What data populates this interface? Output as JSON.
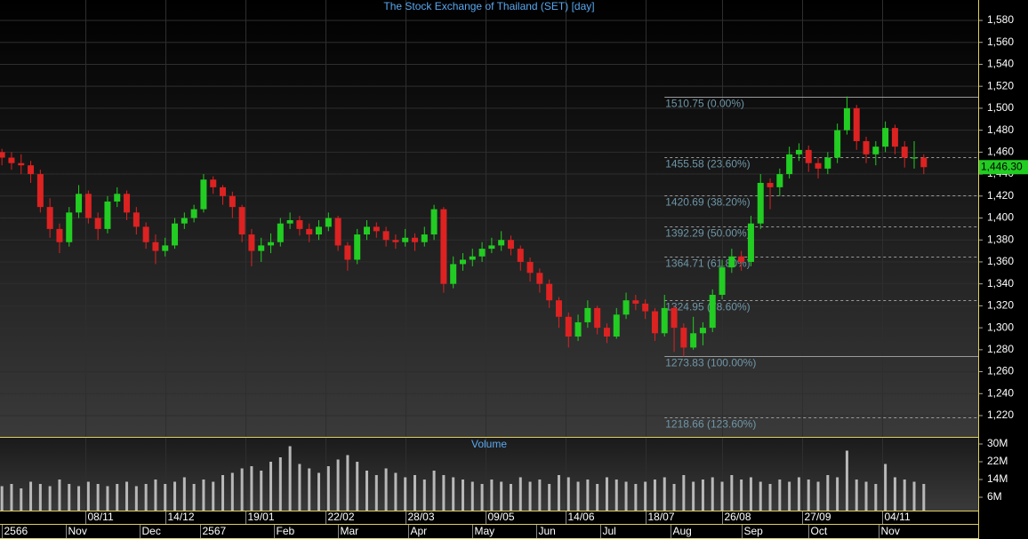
{
  "chart_data": [
    {
      "type": "candlestick",
      "title": "The Stock Exchange of Thailand (SET) [day]",
      "up_color": "#22cc22",
      "down_color": "#dd2222",
      "x": [
        0,
        3,
        6,
        9,
        12,
        15,
        18,
        21,
        24,
        27,
        30,
        33,
        36,
        39,
        42,
        45,
        48,
        51,
        54,
        57,
        60,
        63,
        66,
        69,
        72,
        75,
        78,
        81,
        84,
        87,
        90,
        93,
        96,
        99,
        102,
        105,
        108,
        111,
        114,
        117,
        120,
        123,
        126,
        129,
        132,
        135,
        138,
        141,
        144,
        147,
        150,
        153,
        156,
        159,
        162,
        165,
        168,
        171,
        174,
        177,
        180,
        183,
        186,
        189,
        192,
        195,
        198,
        201,
        204,
        207,
        210,
        213,
        216,
        219,
        222,
        225,
        228,
        231,
        234,
        237,
        240,
        243,
        246,
        249,
        252,
        255,
        258,
        261,
        264,
        267,
        270,
        273,
        276,
        279,
        282,
        285,
        288
      ],
      "ohlc": [
        [
          1460,
          1463,
          1448,
          1455
        ],
        [
          1455,
          1460,
          1444,
          1450
        ],
        [
          1450,
          1458,
          1440,
          1448
        ],
        [
          1448,
          1452,
          1432,
          1440
        ],
        [
          1440,
          1444,
          1405,
          1410
        ],
        [
          1410,
          1418,
          1382,
          1390
        ],
        [
          1390,
          1395,
          1368,
          1378
        ],
        [
          1378,
          1410,
          1374,
          1405
        ],
        [
          1405,
          1430,
          1400,
          1422
        ],
        [
          1422,
          1425,
          1395,
          1400
        ],
        [
          1400,
          1405,
          1380,
          1390
        ],
        [
          1390,
          1420,
          1386,
          1415
        ],
        [
          1415,
          1428,
          1410,
          1422
        ],
        [
          1422,
          1425,
          1398,
          1405
        ],
        [
          1405,
          1410,
          1385,
          1392
        ],
        [
          1392,
          1396,
          1372,
          1378
        ],
        [
          1378,
          1385,
          1358,
          1370
        ],
        [
          1370,
          1382,
          1365,
          1375
        ],
        [
          1375,
          1400,
          1372,
          1395
        ],
        [
          1395,
          1405,
          1390,
          1400
        ],
        [
          1400,
          1412,
          1396,
          1408
        ],
        [
          1408,
          1440,
          1405,
          1435
        ],
        [
          1435,
          1438,
          1422,
          1428
        ],
        [
          1428,
          1430,
          1412,
          1420
        ],
        [
          1420,
          1424,
          1400,
          1410
        ],
        [
          1410,
          1412,
          1378,
          1385
        ],
        [
          1385,
          1390,
          1356,
          1370
        ],
        [
          1370,
          1382,
          1360,
          1375
        ],
        [
          1375,
          1386,
          1368,
          1378
        ],
        [
          1378,
          1400,
          1374,
          1395
        ],
        [
          1395,
          1405,
          1390,
          1398
        ],
        [
          1398,
          1402,
          1384,
          1390
        ],
        [
          1390,
          1395,
          1378,
          1385
        ],
        [
          1385,
          1398,
          1380,
          1392
        ],
        [
          1392,
          1405,
          1388,
          1400
        ],
        [
          1400,
          1402,
          1370,
          1375
        ],
        [
          1375,
          1378,
          1352,
          1362
        ],
        [
          1362,
          1390,
          1358,
          1385
        ],
        [
          1385,
          1398,
          1380,
          1392
        ],
        [
          1392,
          1396,
          1382,
          1388
        ],
        [
          1388,
          1392,
          1374,
          1380
        ],
        [
          1380,
          1385,
          1372,
          1378
        ],
        [
          1378,
          1390,
          1374,
          1382
        ],
        [
          1382,
          1386,
          1370,
          1378
        ],
        [
          1378,
          1392,
          1374,
          1385
        ],
        [
          1385,
          1412,
          1380,
          1408
        ],
        [
          1408,
          1410,
          1332,
          1340
        ],
        [
          1340,
          1365,
          1336,
          1358
        ],
        [
          1358,
          1368,
          1352,
          1362
        ],
        [
          1362,
          1372,
          1356,
          1365
        ],
        [
          1365,
          1378,
          1360,
          1372
        ],
        [
          1372,
          1382,
          1368,
          1375
        ],
        [
          1375,
          1388,
          1370,
          1380
        ],
        [
          1380,
          1384,
          1366,
          1372
        ],
        [
          1372,
          1375,
          1352,
          1360
        ],
        [
          1360,
          1364,
          1342,
          1350
        ],
        [
          1350,
          1354,
          1332,
          1340
        ],
        [
          1340,
          1344,
          1318,
          1325
        ],
        [
          1325,
          1328,
          1300,
          1310
        ],
        [
          1310,
          1314,
          1282,
          1292
        ],
        [
          1292,
          1312,
          1288,
          1305
        ],
        [
          1305,
          1325,
          1300,
          1318
        ],
        [
          1318,
          1320,
          1294,
          1300
        ],
        [
          1300,
          1304,
          1286,
          1292
        ],
        [
          1292,
          1318,
          1290,
          1312
        ],
        [
          1312,
          1332,
          1308,
          1325
        ],
        [
          1325,
          1330,
          1316,
          1322
        ],
        [
          1322,
          1326,
          1308,
          1315
        ],
        [
          1315,
          1318,
          1288,
          1295
        ],
        [
          1295,
          1330,
          1292,
          1318
        ],
        [
          1318,
          1320,
          1278,
          1300
        ],
        [
          1300,
          1304,
          1273.83,
          1282
        ],
        [
          1282,
          1310,
          1280,
          1295
        ],
        [
          1295,
          1305,
          1284,
          1300
        ],
        [
          1300,
          1335,
          1296,
          1330
        ],
        [
          1330,
          1362,
          1326,
          1355
        ],
        [
          1355,
          1372,
          1350,
          1365
        ],
        [
          1365,
          1370,
          1352,
          1360
        ],
        [
          1360,
          1402,
          1356,
          1395
        ],
        [
          1395,
          1440,
          1390,
          1432
        ],
        [
          1432,
          1436,
          1408,
          1428
        ],
        [
          1428,
          1445,
          1420,
          1440
        ],
        [
          1440,
          1465,
          1436,
          1458
        ],
        [
          1458,
          1468,
          1452,
          1462
        ],
        [
          1462,
          1466,
          1442,
          1450
        ],
        [
          1450,
          1455,
          1436,
          1445
        ],
        [
          1445,
          1460,
          1440,
          1455
        ],
        [
          1455,
          1486,
          1450,
          1480
        ],
        [
          1480,
          1510.75,
          1476,
          1500
        ],
        [
          1500,
          1503,
          1462,
          1470
        ],
        [
          1470,
          1474,
          1450,
          1458
        ],
        [
          1458,
          1470,
          1448,
          1465
        ],
        [
          1465,
          1488,
          1460,
          1482
        ],
        [
          1482,
          1485,
          1458,
          1465
        ],
        [
          1465,
          1470,
          1446,
          1455
        ],
        [
          1455,
          1470,
          1445,
          1455
        ],
        [
          1455,
          1458,
          1440,
          1446.3
        ]
      ],
      "xlim": [
        -0.6,
        305
      ],
      "ylim": [
        1200.6,
        1598.6
      ],
      "yticks": [
        {
          "value": 1220,
          "label": "1,220"
        },
        {
          "value": 1240,
          "label": "1,240"
        },
        {
          "value": 1260,
          "label": "1,260"
        },
        {
          "value": 1280,
          "label": "1,280"
        },
        {
          "value": 1300,
          "label": "1,300"
        },
        {
          "value": 1320,
          "label": "1,320"
        },
        {
          "value": 1340,
          "label": "1,340"
        },
        {
          "value": 1360,
          "label": "1,360"
        },
        {
          "value": 1380,
          "label": "1,380"
        },
        {
          "value": 1400,
          "label": "1,400"
        },
        {
          "value": 1420,
          "label": "1,420"
        },
        {
          "value": 1440,
          "label": "1,440"
        },
        {
          "value": 1460,
          "label": "1,460"
        },
        {
          "value": 1480,
          "label": "1,480"
        },
        {
          "value": 1500,
          "label": "1,500"
        },
        {
          "value": 1520,
          "label": "1,520"
        },
        {
          "value": 1540,
          "label": "1,540"
        },
        {
          "value": 1560,
          "label": "1,560"
        },
        {
          "value": 1580,
          "label": "1,580"
        }
      ],
      "xticks": [
        {
          "value": 26,
          "label": "08/11"
        },
        {
          "value": 51,
          "label": "14/12"
        },
        {
          "value": 76,
          "label": "19/01"
        },
        {
          "value": 101,
          "label": "22/02"
        },
        {
          "value": 126,
          "label": "28/03"
        },
        {
          "value": 151,
          "label": "09/05"
        },
        {
          "value": 176,
          "label": "14/06"
        },
        {
          "value": 201,
          "label": "18/07"
        },
        {
          "value": 225,
          "label": "26/08"
        },
        {
          "value": 250,
          "label": "27/09"
        },
        {
          "value": 275,
          "label": "04/11"
        }
      ],
      "month_ticks": [
        {
          "value": 0,
          "label": "2566"
        },
        {
          "value": 20,
          "label": "Nov"
        },
        {
          "value": 43,
          "label": "Dec"
        },
        {
          "value": 62,
          "label": "2567"
        },
        {
          "value": 85,
          "label": "Feb"
        },
        {
          "value": 105,
          "label": "Mar"
        },
        {
          "value": 127,
          "label": "Apr"
        },
        {
          "value": 147,
          "label": "May"
        },
        {
          "value": 167,
          "label": "Jun"
        },
        {
          "value": 187,
          "label": "Jul"
        },
        {
          "value": 209,
          "label": "Aug"
        },
        {
          "value": 231,
          "label": "Sep"
        },
        {
          "value": 252,
          "label": "Oct"
        },
        {
          "value": 274,
          "label": "Nov"
        }
      ],
      "fib_start": 207,
      "fib_levels": [
        {
          "value": 1510.75,
          "label": "1510.75 (0.00%)",
          "dashed": false
        },
        {
          "value": 1455.58,
          "label": "1455.58 (23.60%)",
          "dashed": true
        },
        {
          "value": 1420.69,
          "label": "1420.69 (38.20%)",
          "dashed": true
        },
        {
          "value": 1392.29,
          "label": "1392.29 (50.00%)",
          "dashed": true
        },
        {
          "value": 1364.71,
          "label": "1364.71 (61.80%)",
          "dashed": true
        },
        {
          "value": 1324.95,
          "label": "1324.95 (78.60%)",
          "dashed": true
        },
        {
          "value": 1273.83,
          "label": "1273.83 (100.00%)",
          "dashed": false
        },
        {
          "value": 1218.66,
          "label": "1218.66 (123.60%)",
          "dashed": true
        }
      ],
      "last_price": {
        "value": 1446.3,
        "label": "1,446.30"
      },
      "grid": true
    },
    {
      "type": "bar",
      "title": "Volume",
      "color": "#b8b8b8",
      "values": [
        11,
        12,
        10,
        13,
        12,
        11,
        14,
        12,
        11,
        13,
        12,
        11,
        12,
        13,
        11,
        12,
        14,
        12,
        13,
        15,
        12,
        14,
        13,
        16,
        17,
        19,
        20,
        18,
        22,
        24,
        29,
        21,
        19,
        17,
        20,
        23,
        25,
        22,
        18,
        16,
        19,
        17,
        15,
        16,
        14,
        18,
        16,
        15,
        14,
        13,
        12,
        14,
        13,
        12,
        15,
        13,
        14,
        12,
        16,
        15,
        13,
        14,
        12,
        15,
        14,
        13,
        12,
        13,
        14,
        15,
        12,
        16,
        13,
        14,
        15,
        13,
        16,
        14,
        15,
        13,
        12,
        14,
        13,
        15,
        14,
        13,
        16,
        15,
        27,
        14,
        13,
        12,
        21,
        15,
        14,
        13,
        12
      ],
      "ylim": [
        0,
        33.2
      ],
      "yticks": [
        {
          "value": 6,
          "label": "6M"
        },
        {
          "value": 14,
          "label": "14M"
        },
        {
          "value": 22,
          "label": "22M"
        },
        {
          "value": 30,
          "label": "30M"
        }
      ]
    }
  ]
}
